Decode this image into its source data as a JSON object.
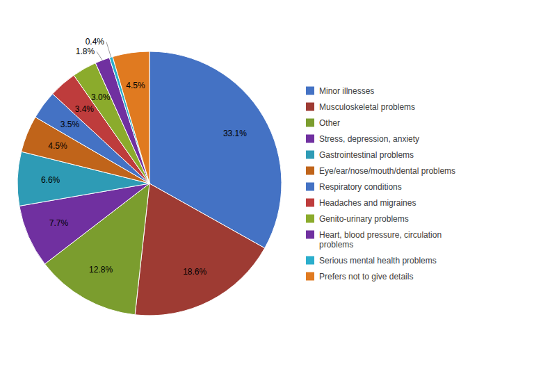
{
  "chart_data": {
    "type": "pie",
    "categories": [
      "Minor illnesses",
      "Musculoskeletal problems",
      "Other",
      "Stress, depression, anxiety",
      "Gastrointestinal problems",
      "Eye/ear/nose/mouth/dental problems",
      "Respiratory conditions",
      "Headaches and migraines",
      "Genito-urinary problems",
      "Heart, blood pressure, circulation\nproblems",
      "Serious mental health problems",
      "Prefers not to give details"
    ],
    "values": [
      33.1,
      18.6,
      12.8,
      7.7,
      6.6,
      4.5,
      3.5,
      3.4,
      3.0,
      1.8,
      0.4,
      4.5
    ],
    "value_labels": [
      "33.1%",
      "18.6%",
      "12.8%",
      "7.7%",
      "6.6%",
      "4.5%",
      "3.5%",
      "3.4%",
      "3.0%",
      "1.8%",
      "0.4%",
      "4.5%"
    ],
    "colors": [
      "#4472C4",
      "#9E3B33",
      "#7B9D2E",
      "#7030A0",
      "#2E9BB5",
      "#C0641A",
      "#4472C4",
      "#BE3C3C",
      "#8BAB2C",
      "#7030A0",
      "#2BAECC",
      "#E07A20"
    ],
    "data_labels": true,
    "legend": "right"
  }
}
